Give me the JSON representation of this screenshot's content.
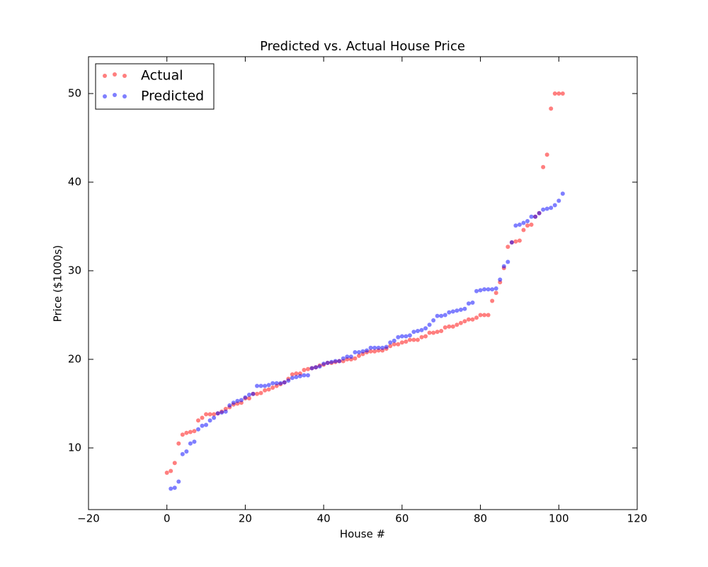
{
  "chart_data": {
    "type": "scatter",
    "title": "Predicted vs. Actual House Price",
    "x_label": "House #",
    "y_label": "Price ($1000s)",
    "xlim": [
      -20,
      120
    ],
    "ylim": [
      3.04,
      54.16
    ],
    "xticks": [
      {
        "value": -20,
        "label": "−20"
      },
      0,
      20,
      40,
      60,
      80,
      100,
      120
    ],
    "yticks": [
      10,
      20,
      30,
      40,
      50
    ],
    "legend": "upper left",
    "grid": false,
    "x": [
      0,
      1,
      2,
      3,
      4,
      5,
      6,
      7,
      8,
      9,
      10,
      11,
      12,
      13,
      14,
      15,
      16,
      17,
      18,
      19,
      20,
      21,
      22,
      23,
      24,
      25,
      26,
      27,
      28,
      29,
      30,
      31,
      32,
      33,
      34,
      35,
      36,
      37,
      38,
      39,
      40,
      41,
      42,
      43,
      44,
      45,
      46,
      47,
      48,
      49,
      50,
      51,
      52,
      53,
      54,
      55,
      56,
      57,
      58,
      59,
      60,
      61,
      62,
      63,
      64,
      65,
      66,
      67,
      68,
      69,
      70,
      71,
      72,
      73,
      74,
      75,
      76,
      77,
      78,
      79,
      80,
      81,
      82,
      83,
      84,
      85,
      86,
      87,
      88,
      89,
      90,
      91,
      92,
      93,
      94,
      95,
      96,
      97,
      98,
      99,
      100,
      101
    ],
    "series": [
      {
        "name": "Actual",
        "color": "#ff0000",
        "values": [
          7.2,
          7.4,
          8.3,
          10.5,
          11.5,
          11.7,
          11.8,
          11.9,
          13.1,
          13.4,
          13.8,
          13.8,
          13.8,
          13.9,
          14.1,
          14.4,
          14.6,
          14.9,
          15.0,
          15.1,
          15.6,
          15.6,
          16.1,
          16.1,
          16.2,
          16.5,
          16.6,
          16.8,
          17.0,
          17.2,
          17.4,
          17.8,
          18.3,
          18.4,
          18.4,
          18.8,
          18.9,
          19.0,
          19.1,
          19.3,
          19.4,
          19.6,
          19.6,
          19.7,
          19.8,
          19.8,
          20.0,
          20.0,
          20.1,
          20.4,
          20.6,
          20.8,
          20.9,
          20.9,
          21.0,
          21.0,
          21.2,
          21.5,
          21.7,
          21.7,
          21.9,
          22.0,
          22.2,
          22.2,
          22.2,
          22.5,
          22.6,
          23.0,
          23.0,
          23.1,
          23.2,
          23.6,
          23.7,
          23.7,
          23.9,
          24.1,
          24.3,
          24.5,
          24.5,
          24.7,
          25.0,
          25.0,
          25.0,
          26.6,
          27.5,
          28.7,
          30.3,
          32.7,
          33.2,
          33.3,
          33.4,
          34.6,
          35.1,
          35.2,
          36.1,
          36.5,
          41.7,
          43.1,
          48.3,
          50.0,
          50.0,
          50.0
        ]
      },
      {
        "name": "Predicted",
        "color": "#0000ff",
        "values": [
          null,
          5.4,
          5.5,
          6.2,
          9.3,
          9.6,
          10.5,
          10.7,
          12.1,
          12.5,
          12.6,
          13.1,
          13.4,
          13.9,
          14.0,
          14.1,
          14.8,
          15.1,
          15.3,
          15.4,
          15.7,
          16.0,
          16.1,
          17.0,
          17.0,
          17.0,
          17.1,
          17.3,
          17.3,
          17.3,
          17.4,
          17.6,
          17.9,
          18.0,
          18.1,
          18.2,
          18.2,
          19.0,
          19.1,
          19.2,
          19.5,
          19.6,
          19.7,
          19.8,
          19.8,
          20.1,
          20.3,
          20.3,
          20.8,
          20.8,
          20.9,
          21.0,
          21.3,
          21.3,
          21.3,
          21.3,
          21.4,
          21.9,
          22.1,
          22.5,
          22.6,
          22.6,
          22.7,
          23.1,
          23.2,
          23.3,
          23.5,
          23.9,
          24.4,
          24.9,
          24.9,
          25.0,
          25.3,
          25.4,
          25.5,
          25.6,
          25.7,
          26.3,
          26.4,
          27.7,
          27.8,
          27.9,
          27.9,
          27.9,
          28.0,
          29.0,
          30.5,
          31.0,
          33.2,
          35.1,
          35.2,
          35.4,
          35.6,
          36.1,
          36.1,
          36.5,
          36.9,
          37.0,
          37.1,
          37.4,
          37.9,
          38.7
        ]
      }
    ]
  }
}
